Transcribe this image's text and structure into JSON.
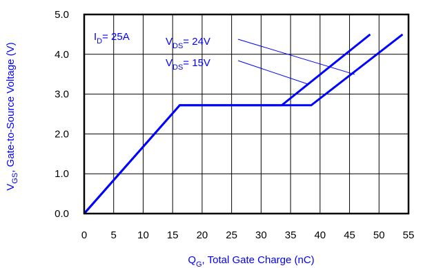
{
  "chart_data": {
    "type": "line",
    "xlabel": {
      "main": "Q",
      "sub": "G",
      "rest": ",  Total Gate Charge (nC)"
    },
    "ylabel": {
      "main": "V",
      "sub": "GS",
      "rest": ", Gate-to-Source Voltage (V)"
    },
    "xlim": [
      0,
      55
    ],
    "ylim": [
      0,
      5
    ],
    "x_ticks": [
      "0",
      "5",
      "10",
      "15",
      "20",
      "25",
      "30",
      "35",
      "40",
      "45",
      "50",
      "55"
    ],
    "y_ticks": [
      "0.0",
      "1.0",
      "2.0",
      "3.0",
      "4.0",
      "5.0"
    ],
    "grid": true,
    "colors": {
      "series": "#0000ff",
      "grid": "#000000",
      "text": "#0000ff"
    },
    "series": [
      {
        "name": "VDS = 24V",
        "points": [
          [
            0,
            0
          ],
          [
            16.2,
            2.72
          ],
          [
            38.5,
            2.72
          ],
          [
            54,
            4.5
          ]
        ]
      },
      {
        "name": "VDS = 15V",
        "points": [
          [
            0,
            0
          ],
          [
            16.2,
            2.72
          ],
          [
            33.5,
            2.72
          ],
          [
            48.5,
            4.5
          ]
        ]
      }
    ],
    "annotations": {
      "id": {
        "main": "I",
        "sub": "D",
        "rest": "= 25A"
      },
      "vds24": {
        "main": "V",
        "sub": "DS",
        "rest": "= 24V"
      },
      "vds15": {
        "main": "V",
        "sub": "DS",
        "rest": "= 15V"
      }
    }
  }
}
